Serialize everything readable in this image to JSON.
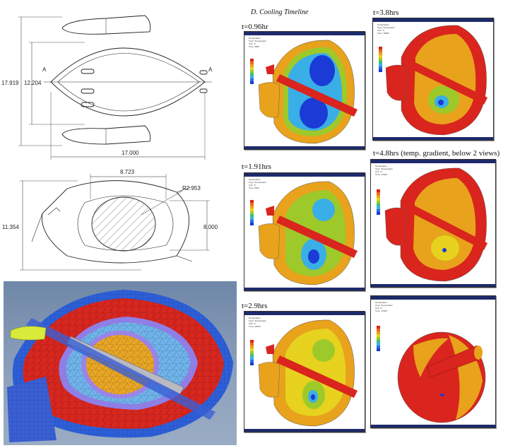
{
  "drawing_top": {
    "dims": [
      "17.919",
      "12.204",
      "17.000"
    ],
    "section_marks": [
      "A",
      "A"
    ]
  },
  "drawing_bottom": {
    "dims": [
      "8.723",
      "R2.953",
      "11.354",
      "8.000"
    ]
  },
  "timeline": {
    "title": "D. Cooling Timeline",
    "labels": [
      "t=0.96hr",
      "t=3.8hrs",
      "t=1.91hrs",
      "t=4.8hrs (temp. gradient, below 2 views)",
      "t=2.9hrs"
    ]
  },
  "colors": {
    "hot": "#d9251d",
    "warm": "#e8a21c",
    "mid": "#9ec92a",
    "cool": "#3aaee6",
    "cold": "#1a3bd6",
    "frame": "#1d2a6b"
  }
}
